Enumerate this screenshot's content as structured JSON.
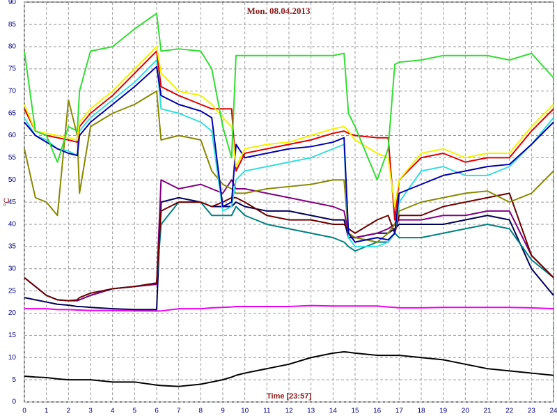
{
  "chart_data": {
    "type": "line",
    "title": "Mon. 08.04.2013",
    "x_label": "Time [23:57]",
    "y_label": "°C",
    "xlim": [
      0,
      24
    ],
    "ylim": [
      0,
      90
    ],
    "xticks": [
      0,
      1,
      2,
      3,
      4,
      5,
      6,
      7,
      8,
      9,
      10,
      11,
      12,
      13,
      14,
      15,
      16,
      17,
      18,
      19,
      20,
      21,
      22,
      23,
      24
    ],
    "yticks": [
      0,
      5,
      10,
      15,
      20,
      25,
      30,
      35,
      40,
      45,
      50,
      55,
      60,
      65,
      70,
      75,
      80,
      85,
      90
    ],
    "grid": true,
    "x": [
      0,
      0.5,
      1,
      1.5,
      2,
      2.4,
      2.5,
      3,
      4,
      5,
      6,
      6.2,
      7,
      8,
      8.5,
      9,
      9.4,
      9.6,
      10,
      11,
      12,
      13,
      14,
      14.5,
      14.7,
      15,
      16,
      16.5,
      16.8,
      17,
      18,
      19,
      20,
      21,
      22,
      23,
      24
    ],
    "series": [
      {
        "color": "#ee00ee",
        "values": [
          21,
          21,
          21,
          20.8,
          20.8,
          20.7,
          20.7,
          20.6,
          20.6,
          20.5,
          20.5,
          20.5,
          21,
          21,
          21.2,
          21.3,
          21.4,
          21.5,
          21.5,
          21.5,
          21.5,
          21.7,
          21.6,
          21.6,
          21.6,
          21.6,
          21.6,
          21.4,
          21.3,
          21.2,
          21.2,
          21.3,
          21.3,
          21.3,
          21.3,
          21.2,
          21
        ]
      },
      {
        "color": "#000000",
        "values": [
          5.8,
          5.6,
          5.5,
          5.2,
          5,
          5,
          5,
          5,
          4.5,
          4.5,
          3.8,
          3.7,
          3.5,
          4,
          4.5,
          5,
          5.6,
          6,
          6.5,
          7.5,
          8.5,
          10,
          11,
          11.3,
          11.2,
          11,
          10.5,
          10.5,
          10.5,
          10.5,
          10,
          9.5,
          8.5,
          7.5,
          7,
          6.5,
          6
        ]
      },
      {
        "color": "#000055",
        "values": [
          23.5,
          23,
          22.5,
          22,
          21.8,
          21.5,
          21.5,
          21.3,
          21,
          20.8,
          20.8,
          45,
          46,
          45,
          44,
          44,
          44,
          45,
          44,
          43,
          43,
          42,
          41,
          41,
          37,
          37,
          38,
          38,
          39,
          40,
          40,
          40,
          41,
          42,
          41,
          30,
          24
        ]
      },
      {
        "color": "#008080",
        "values": [
          28,
          26,
          24,
          23,
          22.8,
          22.8,
          23,
          24,
          25.5,
          26,
          26.5,
          40,
          45,
          45,
          42,
          42,
          42,
          44,
          42,
          40,
          39,
          38,
          37,
          36,
          35,
          34,
          36,
          36,
          38,
          37,
          37,
          38,
          39,
          40,
          39,
          32,
          28
        ]
      },
      {
        "color": "#800080",
        "values": [
          28,
          26,
          24,
          23,
          22.8,
          22.8,
          23,
          24,
          25.5,
          26,
          26.5,
          50,
          48,
          49,
          48,
          47,
          50,
          48,
          48,
          47,
          46,
          45,
          44,
          43,
          38,
          37,
          38,
          39,
          40,
          41,
          41,
          42,
          42,
          43,
          43,
          33,
          28
        ]
      },
      {
        "color": "#6b0000",
        "values": [
          28,
          26,
          24,
          23,
          22.8,
          23,
          23.5,
          24.5,
          25.5,
          26,
          26.8,
          43,
          45,
          45,
          44,
          45,
          46,
          46,
          45,
          42,
          41,
          41,
          40,
          40,
          39,
          38,
          41,
          42,
          38,
          42,
          42,
          44,
          45,
          46,
          47,
          33,
          28
        ]
      },
      {
        "color": "#888800",
        "values": [
          57,
          46,
          45,
          42,
          68,
          60,
          47,
          62,
          65,
          67,
          70,
          59,
          60,
          59,
          52,
          49,
          48,
          47,
          47,
          48,
          48.5,
          49,
          50,
          50,
          38,
          37,
          36,
          38,
          40,
          43,
          45,
          46,
          47,
          47.5,
          45,
          47,
          52
        ]
      },
      {
        "color": "#33dddd",
        "values": [
          64,
          60,
          59,
          57,
          56.5,
          55.5,
          61,
          64,
          68,
          72,
          77,
          66,
          65,
          63,
          61,
          43,
          44,
          50,
          52,
          53,
          54,
          55,
          57,
          58,
          37,
          35,
          35,
          36,
          38,
          45,
          52,
          53,
          51,
          51,
          53,
          58,
          64
        ]
      },
      {
        "color": "#0000aa",
        "values": [
          63,
          60,
          58.5,
          57,
          56,
          55.5,
          60,
          63,
          67,
          71,
          75.5,
          69,
          67,
          65.5,
          64,
          44,
          45,
          58,
          55,
          56,
          57,
          57.5,
          58.5,
          59.5,
          38,
          36,
          37,
          36.5,
          38,
          47,
          49,
          51,
          52,
          53,
          53.5,
          58,
          63
        ]
      },
      {
        "color": "#dd0000",
        "values": [
          66,
          61,
          60,
          59.5,
          59,
          58.5,
          62,
          65,
          69,
          74,
          79,
          71,
          69,
          67,
          66,
          66,
          66,
          52,
          56,
          57,
          58,
          59,
          60.5,
          61,
          60.5,
          60,
          59.5,
          59.5,
          41,
          50,
          55,
          56,
          54,
          55,
          55,
          61,
          66
        ]
      },
      {
        "color": "#f2f200",
        "values": [
          67,
          61,
          60.5,
          60,
          59.5,
          59,
          63,
          66,
          70,
          75,
          80,
          74,
          70,
          69,
          67,
          64,
          62,
          53,
          57,
          58,
          58.5,
          60,
          61.5,
          62,
          61,
          59,
          56,
          55,
          44,
          50,
          56,
          57,
          55,
          56,
          56,
          62,
          67
        ]
      },
      {
        "color": "#33dd33",
        "values": [
          79,
          61,
          60,
          54,
          62,
          61,
          70,
          79,
          80,
          84,
          87.5,
          79,
          79.5,
          79,
          75,
          62,
          55,
          78,
          78,
          78,
          78,
          78,
          78,
          78.5,
          65,
          62,
          50,
          57,
          76,
          76.5,
          77,
          78,
          78,
          78,
          77,
          78.5,
          73
        ]
      }
    ]
  }
}
